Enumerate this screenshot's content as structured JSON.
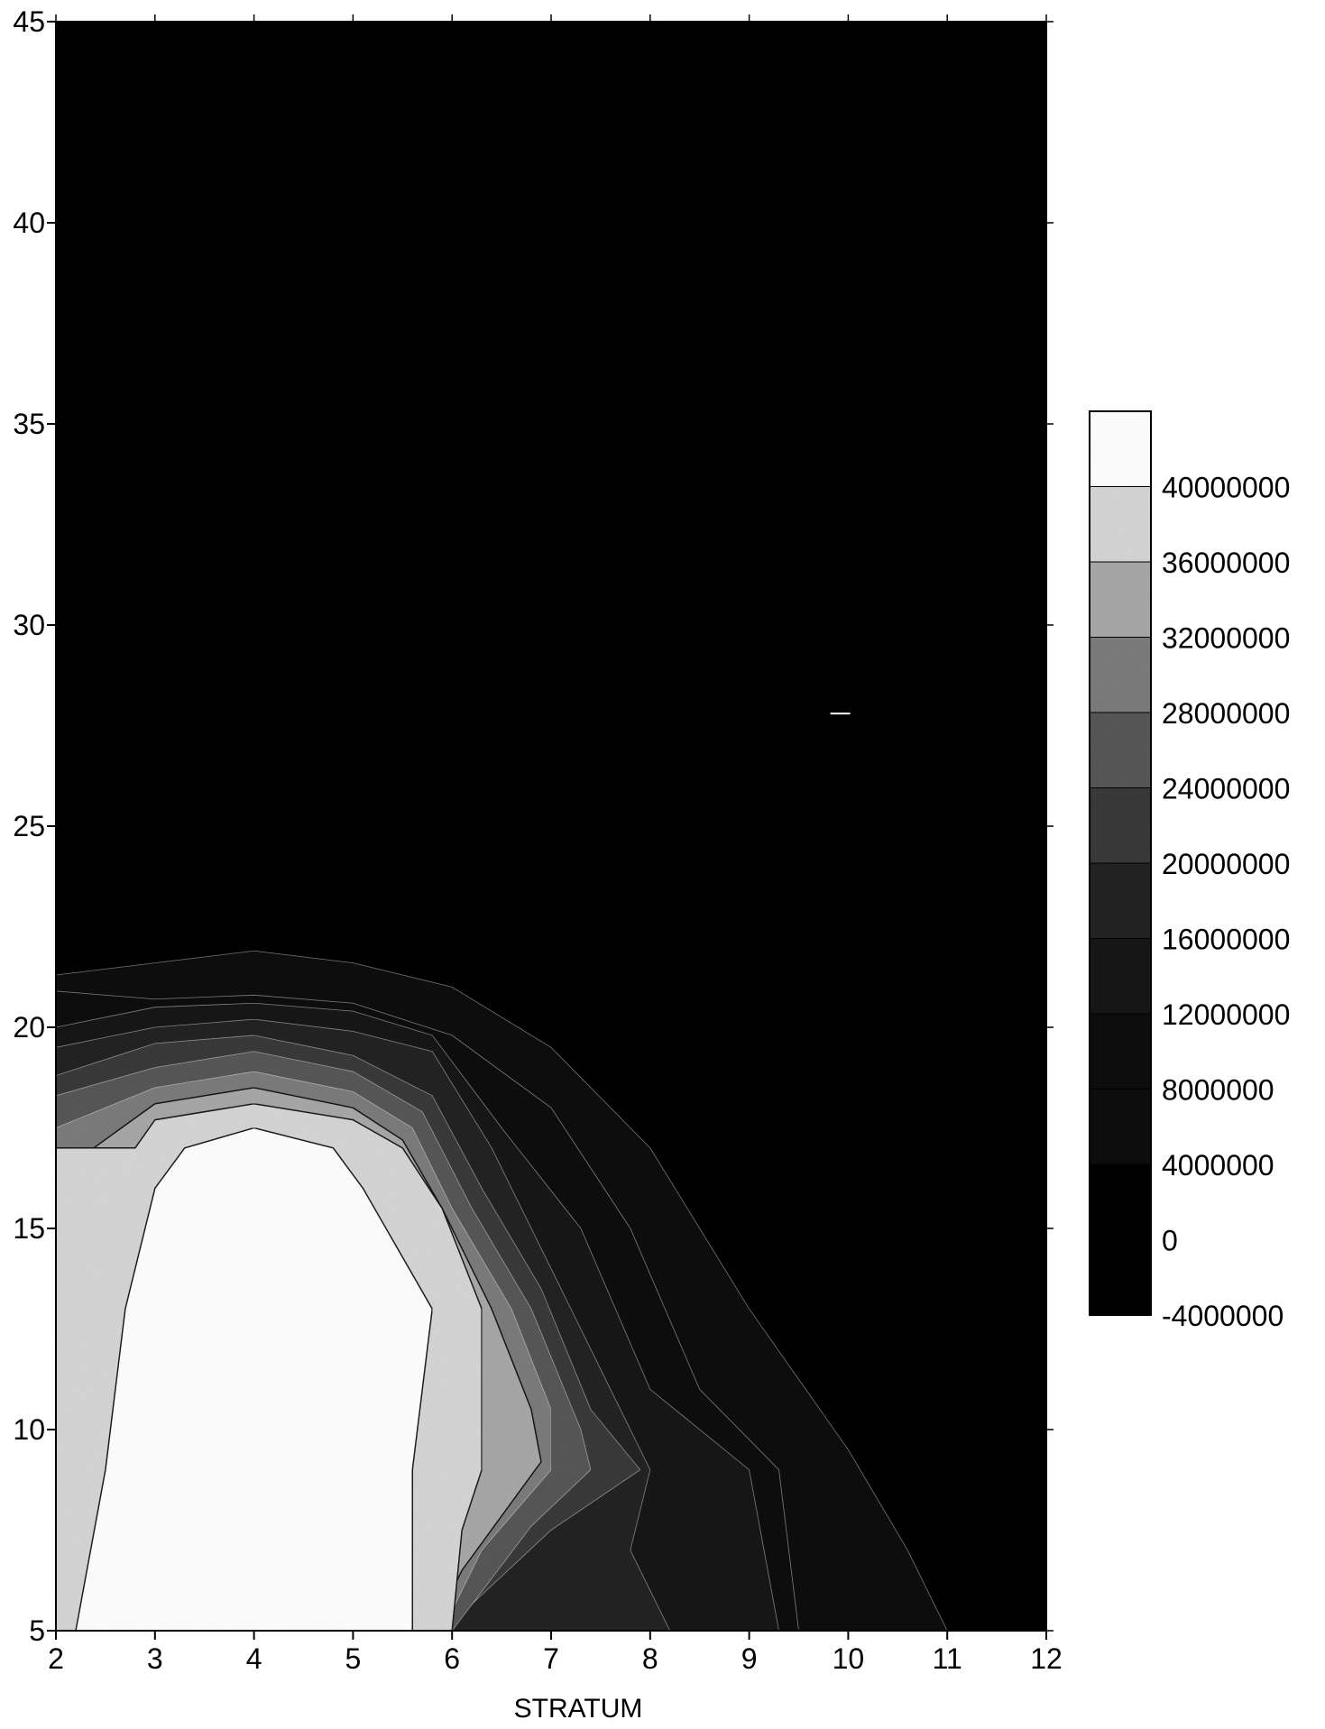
{
  "chart_data": {
    "type": "contour",
    "xlabel": "STRATUM",
    "ylabel": "",
    "title": "",
    "xlim": [
      2,
      12
    ],
    "ylim": [
      5,
      45
    ],
    "xticks": [
      "2",
      "3",
      "4",
      "5",
      "6",
      "7",
      "8",
      "9",
      "10",
      "11",
      "12"
    ],
    "yticks": [
      "5",
      "10",
      "15",
      "20",
      "25",
      "30",
      "35",
      "40",
      "45"
    ],
    "colorbar": {
      "levels": [
        "40000000",
        "36000000",
        "32000000",
        "28000000",
        "24000000",
        "20000000",
        "16000000",
        "12000000",
        "8000000",
        "4000000",
        "0",
        "-4000000"
      ],
      "range": [
        -4000000,
        44000000
      ],
      "fill_colors": [
        "#000000",
        "#050505",
        "#0a0a0a",
        "#111111",
        "#181818",
        "#232323",
        "#3a3a3a",
        "#575757",
        "#7c7c7c",
        "#a8a8a8",
        "#d6d6d6",
        "#ffffff"
      ]
    },
    "contour_levels": [
      {
        "level": 4000000,
        "points": [
          [
            2.0,
            21.3
          ],
          [
            3.0,
            21.6
          ],
          [
            4.0,
            21.9
          ],
          [
            5.0,
            21.6
          ],
          [
            6.0,
            21.0
          ],
          [
            7.0,
            19.5
          ],
          [
            8.0,
            17.0
          ],
          [
            9.0,
            13.0
          ],
          [
            10.0,
            9.5
          ],
          [
            10.6,
            7.0
          ],
          [
            11.0,
            5.0
          ]
        ]
      },
      {
        "level": 8000000,
        "points": [
          [
            2.0,
            20.9
          ],
          [
            3.0,
            20.7
          ],
          [
            4.0,
            20.8
          ],
          [
            5.0,
            20.6
          ],
          [
            6.0,
            19.8
          ],
          [
            7.0,
            18.0
          ],
          [
            7.8,
            15.0
          ],
          [
            8.5,
            11.0
          ],
          [
            9.3,
            9.0
          ],
          [
            9.5,
            5.0
          ]
        ]
      },
      {
        "level": 12000000,
        "points": [
          [
            2.0,
            20.0
          ],
          [
            3.0,
            20.5
          ],
          [
            4.0,
            20.6
          ],
          [
            5.0,
            20.4
          ],
          [
            5.8,
            19.8
          ],
          [
            6.5,
            17.5
          ],
          [
            7.3,
            15.0
          ],
          [
            8.0,
            11.0
          ],
          [
            9.0,
            9.0
          ],
          [
            9.3,
            5.0
          ]
        ]
      },
      {
        "level": 16000000,
        "points": [
          [
            2.0,
            19.5
          ],
          [
            3.0,
            20.0
          ],
          [
            4.0,
            20.2
          ],
          [
            5.0,
            19.9
          ],
          [
            5.8,
            19.4
          ],
          [
            6.4,
            17.0
          ],
          [
            7.0,
            14.0
          ],
          [
            7.6,
            11.0
          ],
          [
            8.0,
            9.0
          ],
          [
            7.8,
            7.0
          ],
          [
            8.2,
            5.0
          ]
        ]
      },
      {
        "level": 20000000,
        "points": [
          [
            2.0,
            18.8
          ],
          [
            3.0,
            19.6
          ],
          [
            4.0,
            19.8
          ],
          [
            5.0,
            19.3
          ],
          [
            5.8,
            18.3
          ],
          [
            6.3,
            16.0
          ],
          [
            6.9,
            13.5
          ],
          [
            7.4,
            10.5
          ],
          [
            7.9,
            9.0
          ],
          [
            7.0,
            7.5
          ],
          [
            6.0,
            5.2
          ]
        ]
      },
      {
        "level": 24000000,
        "points": [
          [
            2.0,
            18.3
          ],
          [
            3.0,
            19.0
          ],
          [
            4.0,
            19.4
          ],
          [
            5.0,
            18.9
          ],
          [
            5.7,
            17.9
          ],
          [
            6.2,
            15.5
          ],
          [
            6.8,
            13.0
          ],
          [
            7.3,
            10.0
          ],
          [
            7.4,
            9.0
          ],
          [
            6.8,
            7.6
          ],
          [
            6.0,
            5.0
          ]
        ]
      },
      {
        "level": 28000000,
        "points": [
          [
            2.0,
            17.5
          ],
          [
            3.0,
            18.5
          ],
          [
            4.0,
            18.9
          ],
          [
            5.0,
            18.4
          ],
          [
            5.6,
            17.5
          ],
          [
            6.0,
            15.5
          ],
          [
            6.6,
            13.0
          ],
          [
            7.0,
            10.5
          ],
          [
            7.0,
            9.0
          ],
          [
            6.3,
            7.0
          ],
          [
            5.9,
            5.0
          ]
        ]
      },
      {
        "level": 32000000,
        "points": [
          [
            2.1,
            16.5
          ],
          [
            3.0,
            18.1
          ],
          [
            4.0,
            18.5
          ],
          [
            5.0,
            18.0
          ],
          [
            5.5,
            17.2
          ],
          [
            5.9,
            15.5
          ],
          [
            6.4,
            13.0
          ],
          [
            6.8,
            10.5
          ],
          [
            6.9,
            9.2
          ],
          [
            6.1,
            6.5
          ],
          [
            5.8,
            5.0
          ]
        ]
      },
      {
        "level": 36000000,
        "points": [
          [
            2.2,
            14.0
          ],
          [
            2.4,
            13.0
          ],
          [
            2.5,
            12.0
          ],
          [
            2.3,
            9.0
          ],
          [
            2.1,
            7.0
          ],
          [
            2.0,
            5.5
          ]
        ]
      },
      {
        "level": 36000001,
        "points": [
          [
            2.8,
            17.0
          ],
          [
            3.0,
            17.7
          ],
          [
            4.0,
            18.1
          ],
          [
            5.0,
            17.7
          ],
          [
            5.5,
            17.0
          ],
          [
            5.9,
            15.5
          ],
          [
            6.3,
            13.0
          ],
          [
            6.3,
            9.0
          ],
          [
            6.1,
            7.5
          ],
          [
            6.0,
            5.0
          ]
        ]
      },
      {
        "level": 40000000,
        "points": [
          [
            2.2,
            5.0
          ],
          [
            2.5,
            9.0
          ],
          [
            2.7,
            13.0
          ],
          [
            3.0,
            16.0
          ],
          [
            3.3,
            17.0
          ],
          [
            4.0,
            17.5
          ],
          [
            4.8,
            17.0
          ],
          [
            5.1,
            16.0
          ],
          [
            5.8,
            13.0
          ],
          [
            5.6,
            9.0
          ],
          [
            5.6,
            5.0
          ]
        ]
      }
    ],
    "annotations": []
  }
}
